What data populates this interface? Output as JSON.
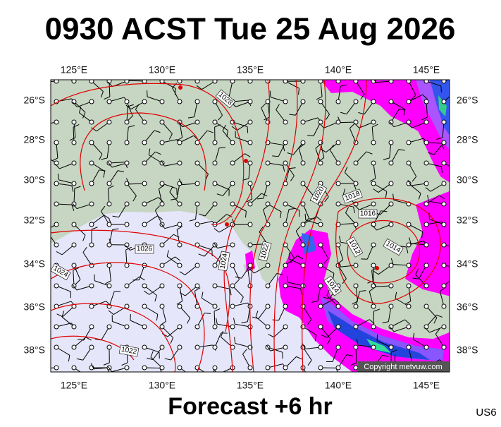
{
  "header": {
    "title": "0930 ACST Tue 25 Aug 2026"
  },
  "map": {
    "lon_labels": [
      "125°E",
      "130°E",
      "135°E",
      "140°E",
      "145°E"
    ],
    "lat_labels": [
      "26°S",
      "28°S",
      "30°S",
      "32°S",
      "34°S",
      "36°S",
      "38°S"
    ],
    "isobar_labels": [
      "1028",
      "1020",
      "1018",
      "1016",
      "1012",
      "1014",
      "1014",
      "1026",
      "1024",
      "1022",
      "1024",
      "1022"
    ],
    "copyright": "Copyright metvuw.com"
  },
  "footer": {
    "caption": "Forecast +6 hr",
    "code": "US6"
  }
}
